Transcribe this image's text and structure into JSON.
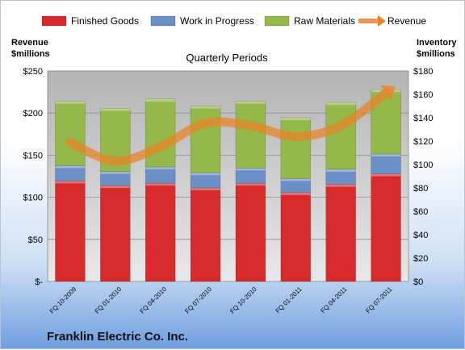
{
  "chart_data": {
    "type": "bar",
    "stacked": true,
    "title": "Quarterly Periods",
    "company": "Franklin Electric Co. Inc.",
    "left_axis_title": [
      "Revenue",
      "$millions"
    ],
    "right_axis_title": [
      "Inventory",
      "$millions"
    ],
    "left_ticks": [
      "$-",
      "$50",
      "$100",
      "$150",
      "$200",
      "$250"
    ],
    "right_ticks": [
      "$0",
      "$20",
      "$40",
      "$60",
      "$80",
      "$100",
      "$120",
      "$140",
      "$160",
      "$180"
    ],
    "left_ylim": [
      0,
      250
    ],
    "right_ylim": [
      0,
      180
    ],
    "categories": [
      "FQ 10-2009",
      "FQ 01-2010",
      "FQ 04-2010",
      "FQ 07-2010",
      "FQ 10-2010",
      "FQ 01-2011",
      "FQ 04-2011",
      "FQ 07-2011"
    ],
    "series": [
      {
        "name": "Finished Goods",
        "axis": "right",
        "color": "#d82a2a",
        "values": [
          86,
          82,
          84,
          80,
          84,
          76,
          83,
          92
        ]
      },
      {
        "name": "Work in Progress",
        "axis": "right",
        "color": "#6d8fc8",
        "values": [
          13,
          12,
          14,
          13,
          13,
          12,
          13,
          17
        ]
      },
      {
        "name": "Raw Materials",
        "axis": "right",
        "color": "#94b84a",
        "values": [
          55,
          54,
          58,
          57,
          57,
          52,
          57,
          55
        ]
      },
      {
        "name": "Revenue",
        "axis": "left",
        "type": "line",
        "color": "#e8842a",
        "values": [
          165,
          143,
          160,
          188,
          185,
          172,
          185,
          224
        ]
      }
    ],
    "legend": [
      "Finished Goods",
      "Work in Progress",
      "Raw Materials",
      "Revenue"
    ],
    "legend_position": "top",
    "grid": true
  }
}
